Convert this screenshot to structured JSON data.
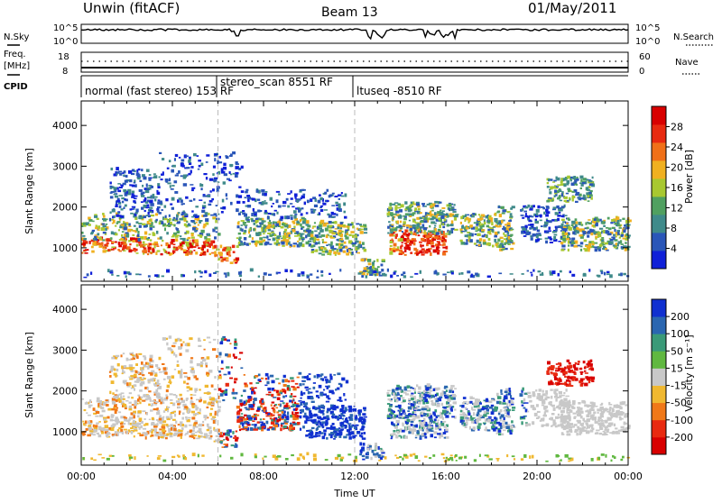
{
  "header": {
    "station": "Unwin (fitACF)",
    "beam": "Beam 13",
    "date": "01/May/2011"
  },
  "summary": {
    "nsky_label": "N.Sky",
    "nsearch_label": "N.Search",
    "freq_label_line1": "Freq.",
    "freq_label_line2": "[MHz]",
    "nave_label": "Nave",
    "cpid_label": "CPID",
    "noise_ticks_left": [
      "10^5",
      "10^0"
    ],
    "noise_ticks_right": [
      "10^5",
      "10^0"
    ],
    "freq_ticks_left": [
      "18",
      "8"
    ],
    "nave_ticks_right": [
      "60",
      "0"
    ]
  },
  "cpid_segments": [
    {
      "start_hour": 0,
      "label": "normal (fast stereo) 153 RF"
    },
    {
      "start_hour": 6,
      "label": "stereo_scan 8551 RF"
    },
    {
      "start_hour": 12,
      "label": "ltuseq -8510 RF"
    }
  ],
  "chart_data": [
    {
      "type": "heatmap",
      "name": "power",
      "ylabel": "Slant Range [km]",
      "xlabel": "",
      "xlim": [
        0,
        24
      ],
      "ylim": [
        180,
        4600
      ],
      "yticks": [
        "1000",
        "2000",
        "3000",
        "4000"
      ],
      "colorbar": {
        "label": "Power [dB]",
        "ticks": [
          "4",
          "8",
          "12",
          "16",
          "20",
          "24",
          "28"
        ],
        "colors": [
          "#1020d8",
          "#2a56b8",
          "#3f8a8a",
          "#50a060",
          "#a8c830",
          "#f0b020",
          "#f07018",
          "#e82a10",
          "#d80000"
        ]
      }
    },
    {
      "type": "heatmap",
      "name": "velocity",
      "ylabel": "Slant Range [km]",
      "xlabel": "Time UT",
      "xlim": [
        0,
        24
      ],
      "ylim": [
        180,
        4600
      ],
      "yticks": [
        "1000",
        "2000",
        "3000",
        "4000"
      ],
      "xticks": [
        "00:00",
        "04:00",
        "08:00",
        "12:00",
        "16:00",
        "20:00",
        "00:00"
      ],
      "colorbar": {
        "label": "Velocity [m s⁻¹]",
        "ticks": [
          "200",
          "100",
          "50",
          "15",
          "-15",
          "-50",
          "-100",
          "-200"
        ],
        "colors": [
          "#1030d0",
          "#2a66b0",
          "#3a9a78",
          "#60b840",
          "#c8c8c8",
          "#f0b830",
          "#f07818",
          "#e82a10",
          "#d80000"
        ]
      }
    }
  ]
}
